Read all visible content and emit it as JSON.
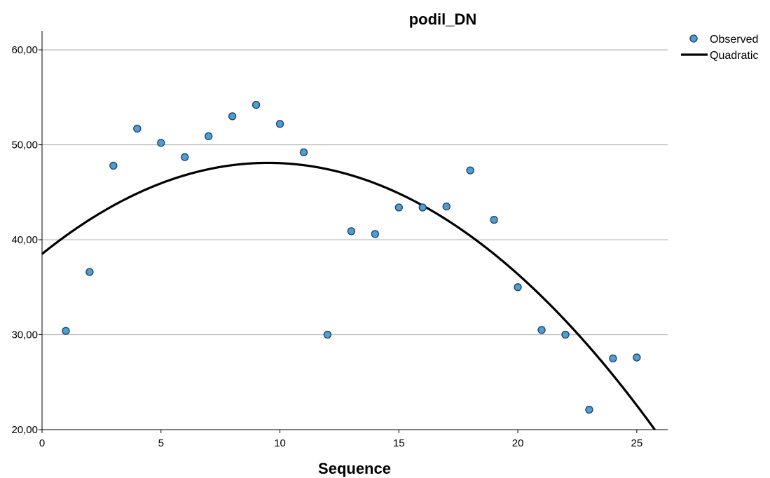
{
  "chart_data": {
    "type": "scatter",
    "title": "podil_DN",
    "xlabel": "Sequence",
    "ylabel": "",
    "xlim": [
      0,
      26.3
    ],
    "ylim": [
      20,
      62
    ],
    "x_ticks": [
      0,
      5,
      10,
      15,
      20,
      25
    ],
    "x_tick_labels": [
      "0",
      "5",
      "10",
      "15",
      "20",
      "25"
    ],
    "y_ticks": [
      20,
      30,
      40,
      50,
      60
    ],
    "y_tick_labels": [
      "20,00",
      "30,00",
      "40,00",
      "50,00",
      "60,00"
    ],
    "grid": "horizontal",
    "legend_position": "top-right",
    "series": [
      {
        "name": "Observed",
        "kind": "points",
        "color": "#4a9fd8",
        "x": [
          1,
          2,
          3,
          4,
          5,
          6,
          7,
          8,
          9,
          10,
          11,
          12,
          13,
          14,
          15,
          16,
          17,
          18,
          19,
          20,
          21,
          22,
          23,
          24,
          25
        ],
        "y": [
          30.4,
          36.6,
          47.8,
          51.7,
          50.2,
          48.7,
          50.9,
          53.0,
          54.2,
          52.2,
          49.2,
          30.0,
          40.9,
          40.6,
          43.4,
          43.4,
          43.5,
          47.3,
          42.1,
          35.0,
          30.5,
          30.0,
          22.1,
          27.5,
          27.6
        ]
      },
      {
        "name": "Quadratic",
        "kind": "curve",
        "color": "#000000",
        "coefficients": {
          "a": -0.1063,
          "b": 2.0196,
          "c": 38.5
        }
      }
    ]
  }
}
